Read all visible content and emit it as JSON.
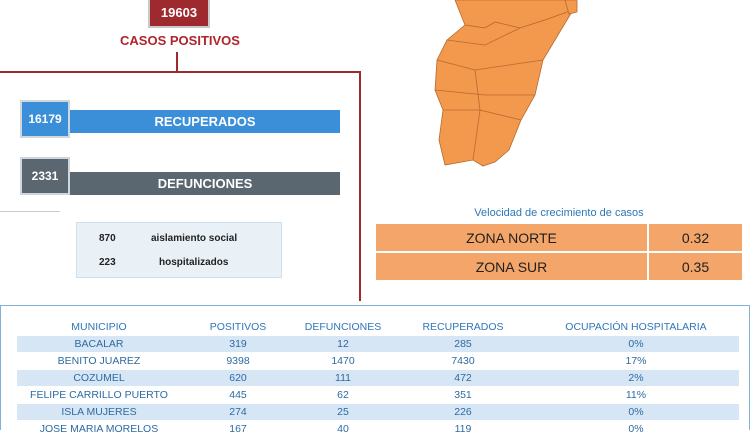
{
  "top": {
    "positivos_value": "19603",
    "positivos_label": "CASOS POSITIVOS"
  },
  "stats": {
    "recuperados": {
      "value": "16179",
      "label": "RECUPERADOS"
    },
    "defunciones": {
      "value": "2331",
      "label": "DEFUNCIONES"
    }
  },
  "active": [
    {
      "value": "870",
      "label": "aislamiento social"
    },
    {
      "value": "223",
      "label": "hospitalizados"
    }
  ],
  "growth": {
    "title": "Velocidad de crecimiento de casos",
    "zones": [
      {
        "name": "ZONA NORTE",
        "value": "0.32"
      },
      {
        "name": "ZONA SUR",
        "value": "0.35"
      }
    ]
  },
  "table": {
    "headers": [
      "MUNICIPIO",
      "POSITIVOS",
      "DEFUNCIONES",
      "RECUPERADOS",
      "OCUPACIÓN HOSPITALARIA"
    ],
    "rows": [
      [
        "BACALAR",
        "319",
        "12",
        "285",
        "0%"
      ],
      [
        "BENITO JUAREZ",
        "9398",
        "1470",
        "7430",
        "17%"
      ],
      [
        "COZUMEL",
        "620",
        "111",
        "472",
        "2%"
      ],
      [
        "FELIPE CARRILLO PUERTO",
        "445",
        "62",
        "351",
        "11%"
      ],
      [
        "ISLA MUJERES",
        "274",
        "25",
        "226",
        "0%"
      ],
      [
        "JOSE MARIA MORELOS",
        "167",
        "40",
        "119",
        "0%"
      ]
    ]
  },
  "colors": {
    "brand_red": "#9e2a2f",
    "recuperados_blue": "#3a8fd8",
    "defunciones_gray": "#5a6670",
    "map_orange": "#f2994e",
    "zone_orange": "#f4a66a",
    "table_shade": "#d6e6f4"
  }
}
